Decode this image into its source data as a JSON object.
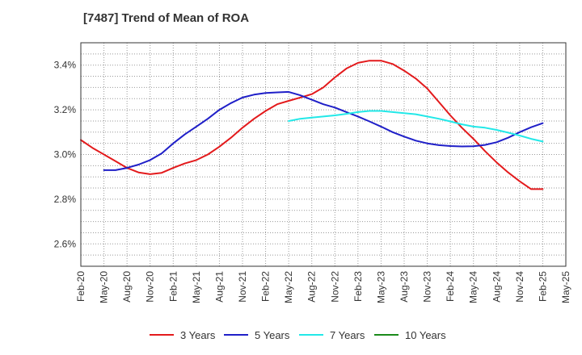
{
  "chart_data": {
    "type": "line",
    "title": "[7487]  Trend of Mean of ROA",
    "xlabel": "",
    "ylabel": "",
    "ylim": [
      2.5,
      3.5
    ],
    "yticks": [
      2.6,
      2.8,
      3.0,
      3.2,
      3.4
    ],
    "ytick_labels": [
      "2.6%",
      "2.8%",
      "3.0%",
      "3.2%",
      "3.4%"
    ],
    "x_labels": [
      "Feb-20",
      "May-20",
      "Aug-20",
      "Nov-20",
      "Feb-21",
      "May-21",
      "Aug-21",
      "Nov-21",
      "Feb-22",
      "May-22",
      "Aug-22",
      "Nov-22",
      "Feb-23",
      "May-23",
      "Aug-23",
      "Nov-23",
      "Feb-24",
      "May-24",
      "Aug-24",
      "Nov-24",
      "Feb-25",
      "May-25"
    ],
    "x_range_index": [
      0,
      21
    ],
    "grid": true,
    "legend_position": "bottom",
    "series": [
      {
        "name": "3 Years",
        "color": "#e31a1c",
        "x": [
          0,
          0.5,
          1,
          1.5,
          2,
          2.5,
          3,
          3.5,
          4,
          4.5,
          5,
          5.5,
          6,
          6.5,
          7,
          7.5,
          8,
          8.5,
          9,
          9.5,
          10,
          10.5,
          11,
          11.5,
          12,
          12.5,
          13,
          13.5,
          14,
          14.5,
          15,
          15.5,
          16,
          16.5,
          17,
          17.5,
          18,
          18.5,
          19,
          19.5,
          20
        ],
        "values": [
          3.065,
          3.03,
          3.0,
          2.97,
          2.94,
          2.92,
          2.912,
          2.918,
          2.94,
          2.96,
          2.975,
          3.0,
          3.035,
          3.075,
          3.12,
          3.16,
          3.195,
          3.225,
          3.24,
          3.255,
          3.27,
          3.3,
          3.345,
          3.385,
          3.41,
          3.42,
          3.42,
          3.405,
          3.375,
          3.34,
          3.295,
          3.235,
          3.175,
          3.12,
          3.07,
          3.015,
          2.965,
          2.92,
          2.88,
          2.845,
          2.845
        ]
      },
      {
        "name": "5 Years",
        "color": "#1f1fc8",
        "x": [
          1,
          1.5,
          2,
          2.5,
          3,
          3.5,
          4,
          4.5,
          5,
          5.5,
          6,
          6.5,
          7,
          7.5,
          8,
          8.5,
          9,
          9.5,
          10,
          10.5,
          11,
          11.5,
          12,
          12.5,
          13,
          13.5,
          14,
          14.5,
          15,
          15.5,
          16,
          16.5,
          17,
          17.5,
          18,
          18.5,
          19,
          19.5,
          20
        ],
        "values": [
          2.93,
          2.93,
          2.94,
          2.955,
          2.975,
          3.005,
          3.05,
          3.09,
          3.125,
          3.16,
          3.2,
          3.23,
          3.255,
          3.268,
          3.275,
          3.278,
          3.28,
          3.265,
          3.245,
          3.225,
          3.21,
          3.19,
          3.17,
          3.148,
          3.125,
          3.1,
          3.08,
          3.062,
          3.05,
          3.042,
          3.038,
          3.036,
          3.037,
          3.043,
          3.055,
          3.075,
          3.1,
          3.122,
          3.14
        ]
      },
      {
        "name": "7 Years",
        "color": "#22e8e8",
        "x": [
          9,
          9.5,
          10,
          10.5,
          11,
          11.5,
          12,
          12.5,
          13,
          13.5,
          14,
          14.5,
          15,
          15.5,
          16,
          16.5,
          17,
          17.5,
          18,
          18.5,
          19,
          19.5,
          20
        ],
        "values": [
          3.15,
          3.16,
          3.165,
          3.17,
          3.175,
          3.182,
          3.19,
          3.195,
          3.195,
          3.19,
          3.185,
          3.18,
          3.17,
          3.16,
          3.148,
          3.135,
          3.125,
          3.12,
          3.11,
          3.098,
          3.085,
          3.07,
          3.058
        ]
      },
      {
        "name": "10 Years",
        "color": "#1a8a1a",
        "x": [],
        "values": []
      }
    ]
  }
}
